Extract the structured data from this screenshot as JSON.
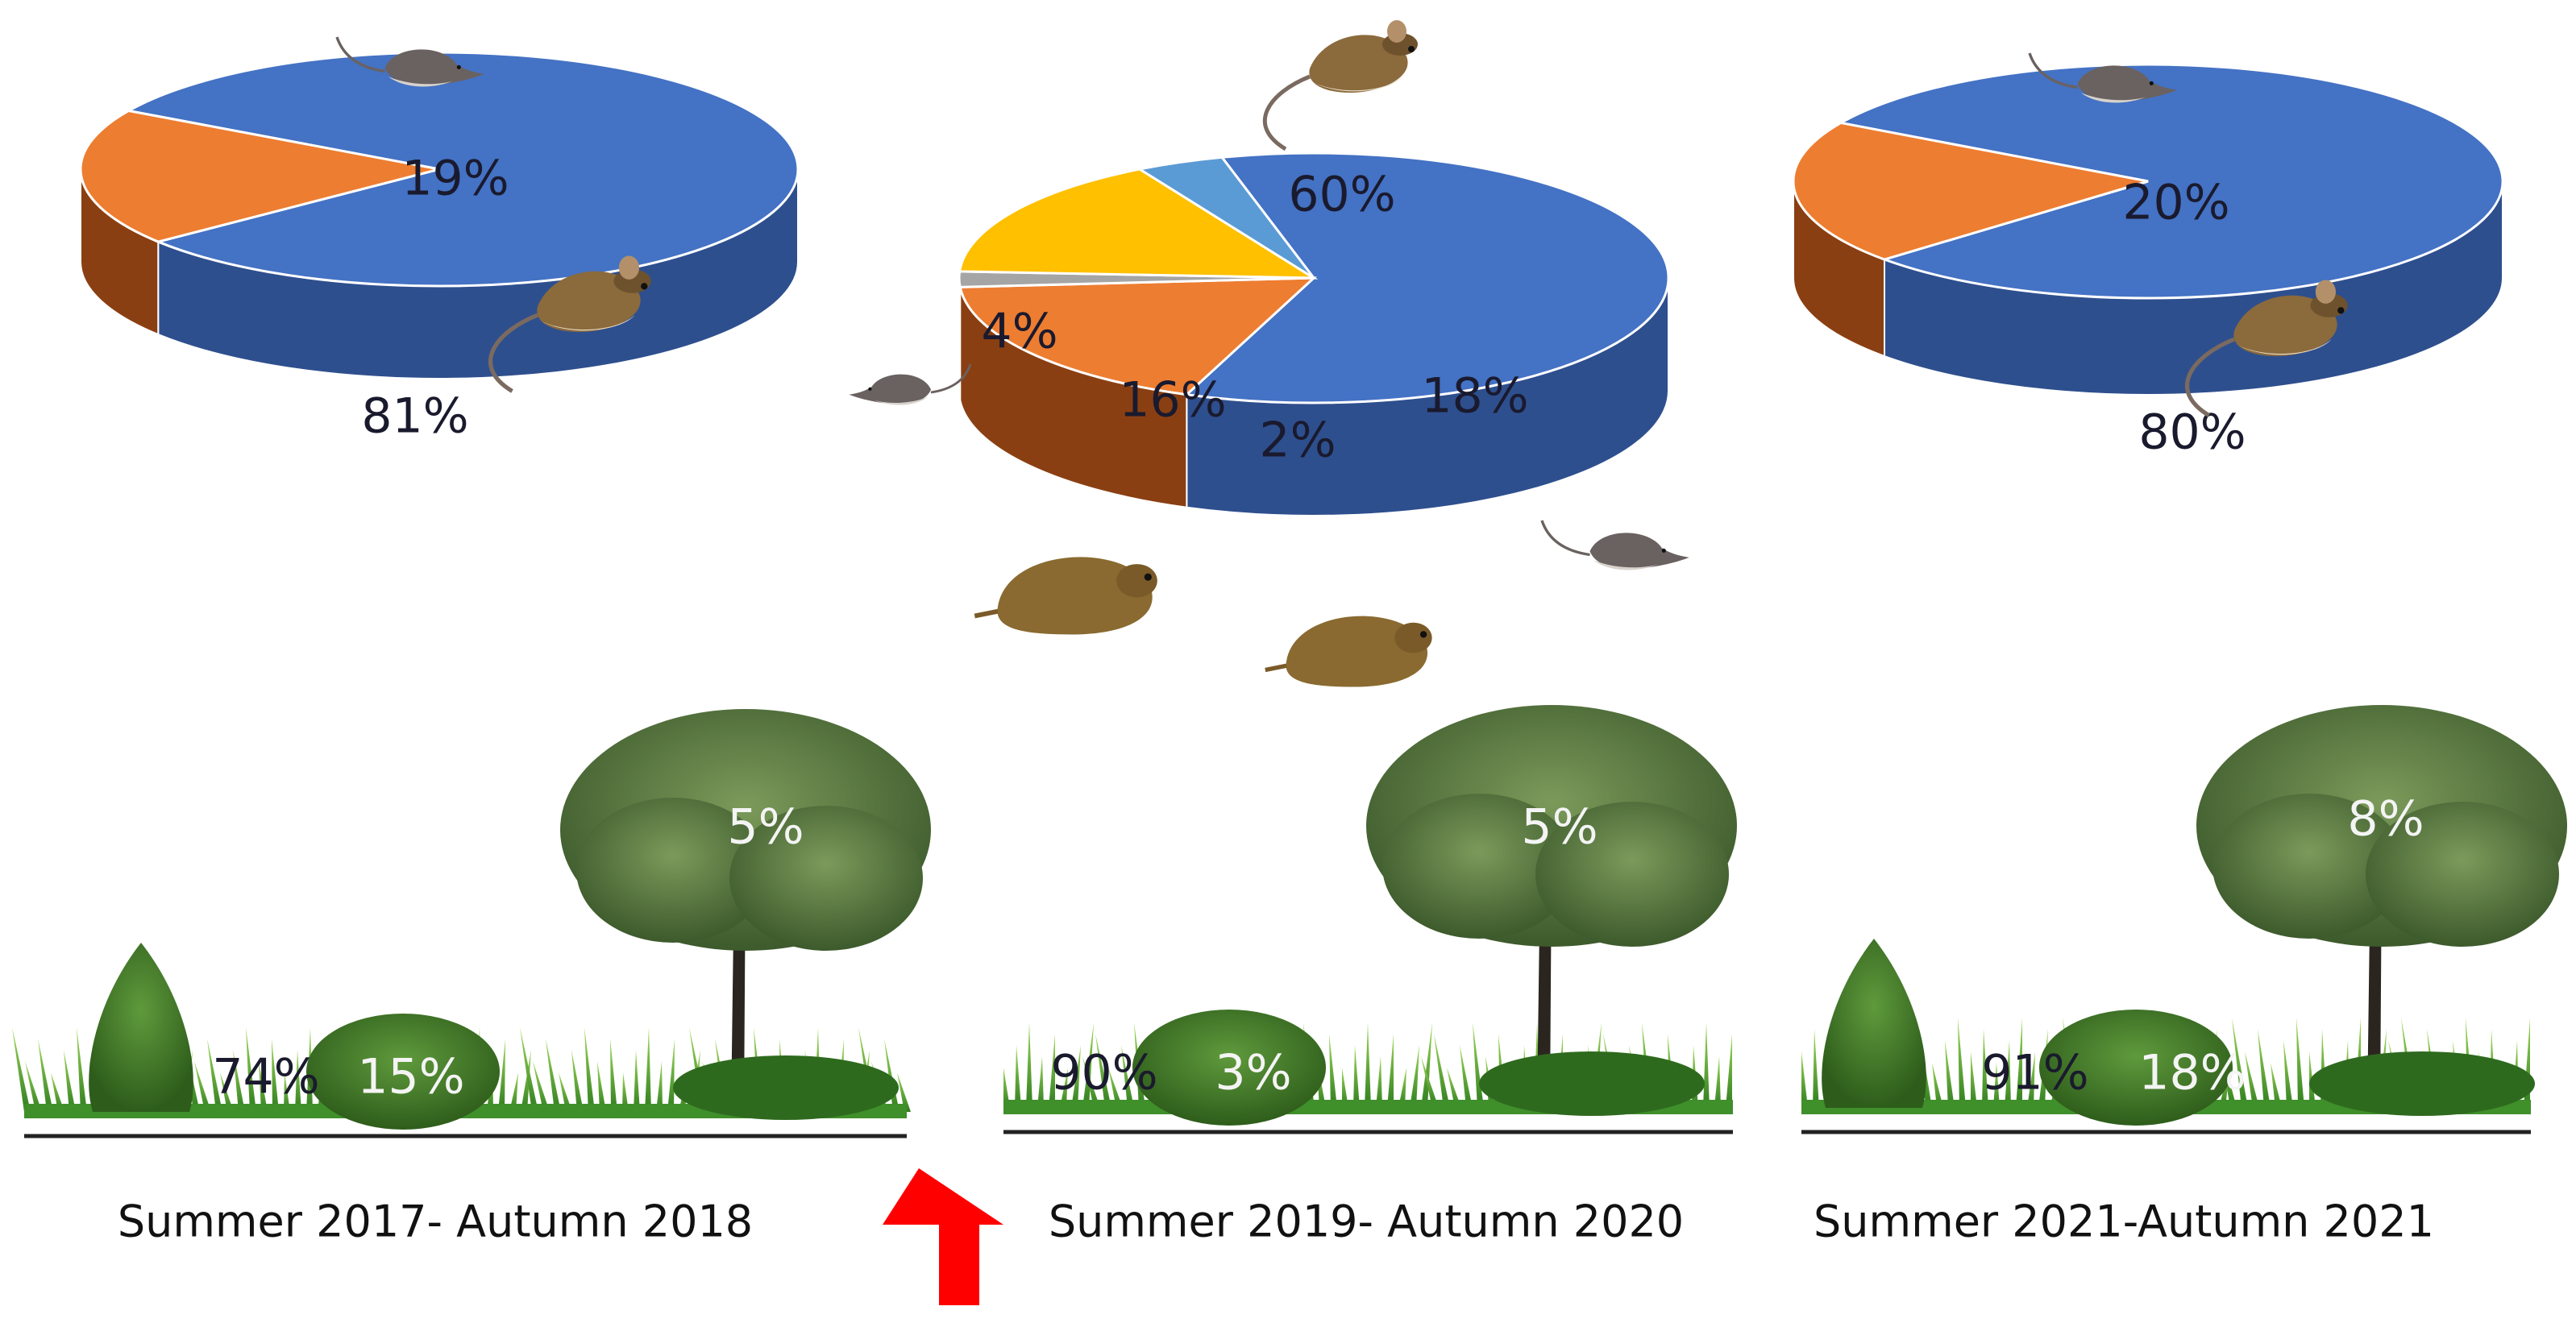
{
  "colors": {
    "blue": "#4472C4",
    "blue_side": "#2E4F8E",
    "orange": "#ED7D31",
    "orange_side": "#8A3F12",
    "yellow": "#FFC000",
    "yellow_side": "#B8860B",
    "gray": "#A5A5A5",
    "gray_side": "#555555",
    "light_blue": "#5B9BD5",
    "light_blue_side": "#2F6496",
    "arrow": "#FF0000"
  },
  "pies": [
    {
      "slices": [
        {
          "label": "81%",
          "value": 81,
          "color": "blue"
        },
        {
          "label": "19%",
          "value": 19,
          "color": "orange"
        }
      ]
    },
    {
      "slices": [
        {
          "label": "60%",
          "value": 60,
          "color": "blue"
        },
        {
          "label": "18%",
          "value": 18,
          "color": "orange"
        },
        {
          "label": "2%",
          "value": 2,
          "color": "gray"
        },
        {
          "label": "16%",
          "value": 16,
          "color": "yellow"
        },
        {
          "label": "4%",
          "value": 4,
          "color": "light_blue"
        }
      ]
    },
    {
      "slices": [
        {
          "label": "80%",
          "value": 80,
          "color": "blue"
        },
        {
          "label": "20%",
          "value": 20,
          "color": "orange"
        }
      ]
    }
  ],
  "habitats": [
    {
      "period": "Summer 2017- Autumn 2018",
      "grass": "74%",
      "shrub": "15%",
      "tree": "5%"
    },
    {
      "period": "Summer 2019- Autumn 2020",
      "grass": "90%",
      "shrub": "3%",
      "tree": "5%"
    },
    {
      "period": "Summer 2021-Autumn 2021",
      "grass": "91%",
      "shrub": "18%",
      "tree": "8%"
    }
  ],
  "icons": [
    "mouse-icon",
    "shrew-icon",
    "vole-icon",
    "tree-icon",
    "shrub-icon",
    "grass-icon",
    "red-arrow-icon"
  ]
}
